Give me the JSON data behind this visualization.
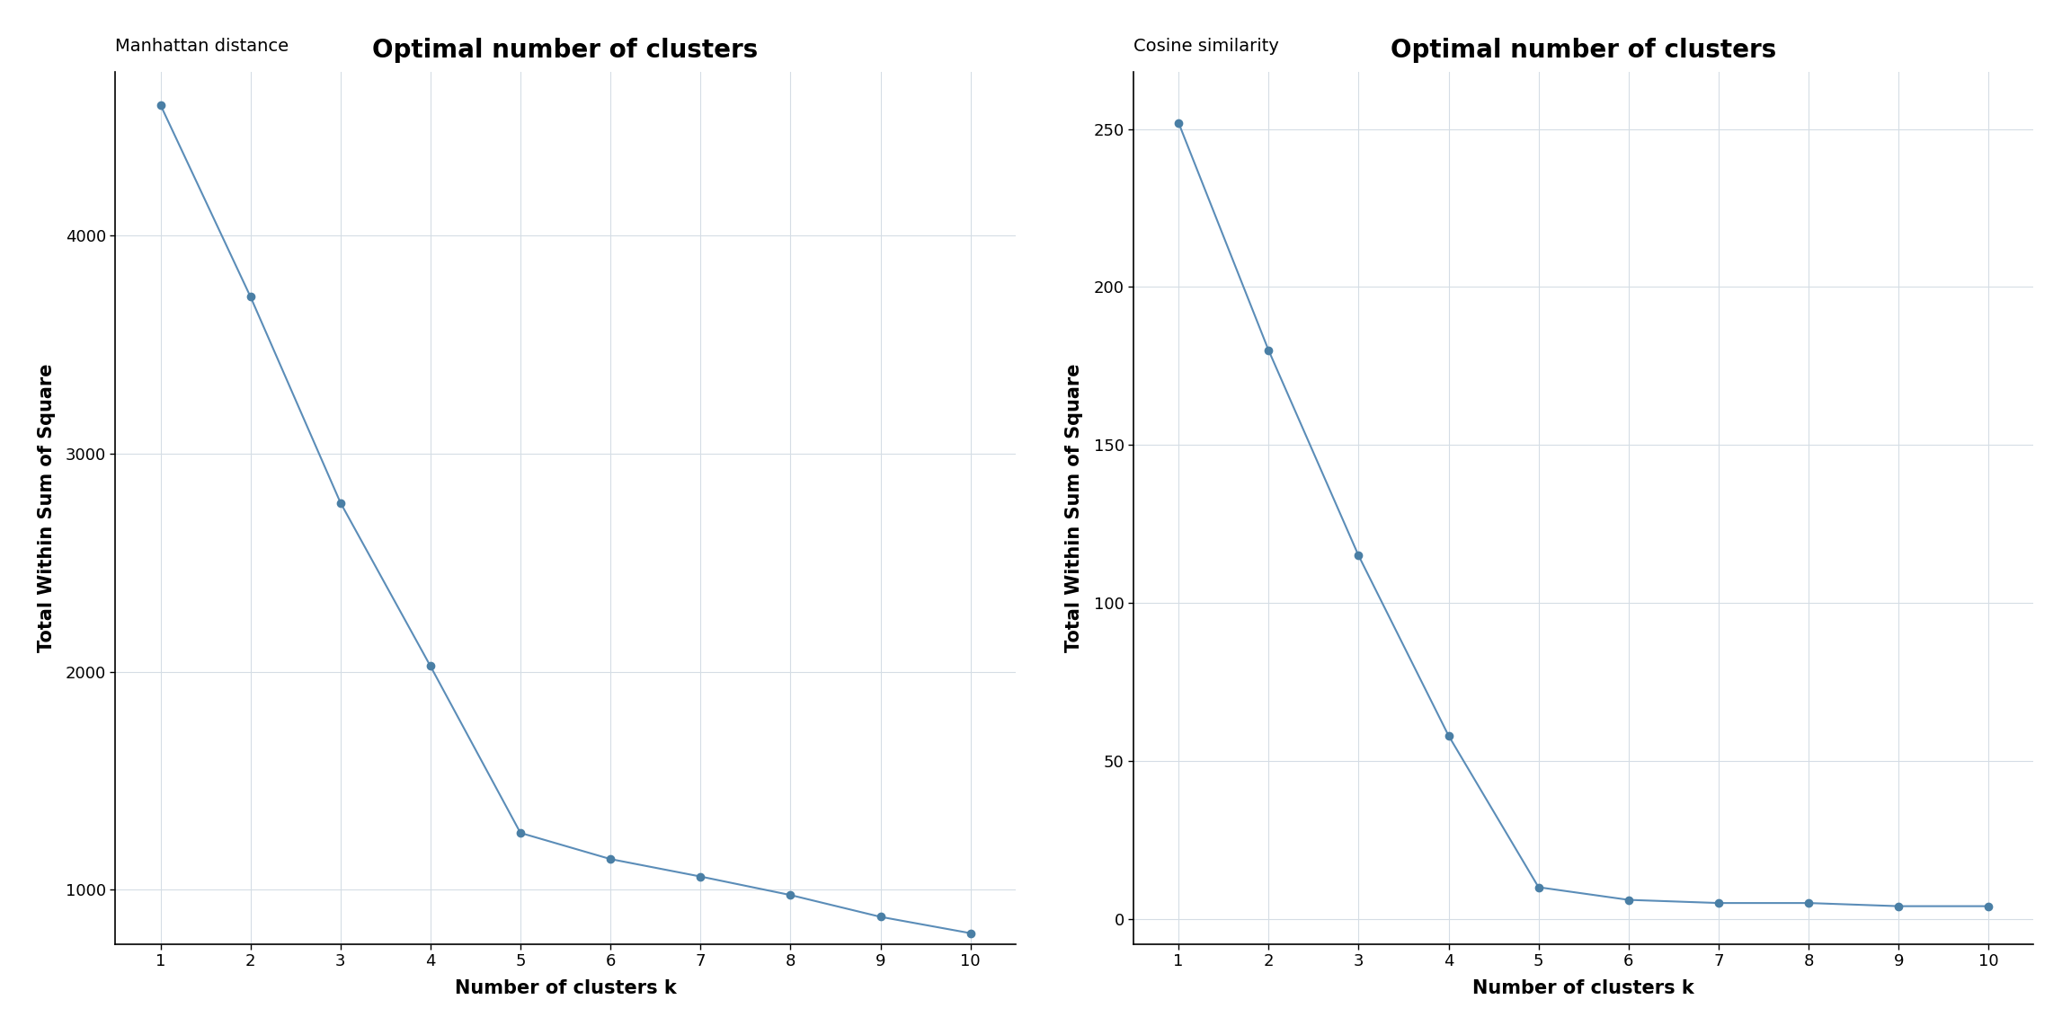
{
  "k_values": [
    1,
    2,
    3,
    4,
    5,
    6,
    7,
    8,
    9,
    10
  ],
  "manhattan_values": [
    4600,
    3720,
    2775,
    2025,
    1260,
    1140,
    1060,
    975,
    875,
    800
  ],
  "cosine_values": [
    252,
    180,
    115,
    58,
    10,
    6,
    5,
    5,
    4,
    4
  ],
  "title": "Optimal number of clusters",
  "subtitle_left": "Manhattan distance",
  "subtitle_right": "Cosine similarity",
  "xlabel": "Number of clusters k",
  "ylabel": "Total Within Sum of Square",
  "line_color": "#5b8db8",
  "marker_color": "#4a7fa5",
  "background_color": "#ffffff",
  "grid_color": "#d5dde5",
  "title_fontsize": 20,
  "subtitle_fontsize": 14,
  "label_fontsize": 15,
  "tick_fontsize": 13,
  "left_ylim": [
    750,
    4750
  ],
  "right_ylim": [
    -8,
    268
  ],
  "left_yticks": [
    1000,
    2000,
    3000,
    4000
  ],
  "right_yticks": [
    0,
    50,
    100,
    150,
    200,
    250
  ]
}
